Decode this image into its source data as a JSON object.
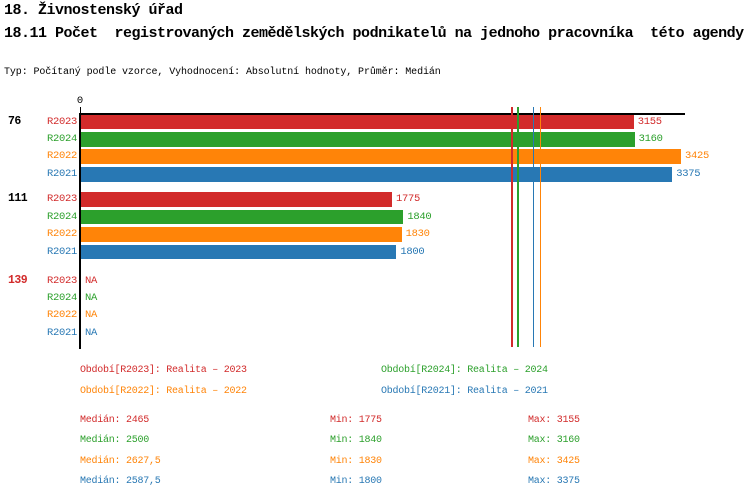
{
  "header": {
    "title": "18. Živnostenský úřad",
    "subtitle": "18.11 Počet  registrovaných zemědělských podnikatelů na jednoho pracovníka  této agendy",
    "meta": "Typ: Počítaný podle vzorce, Vyhodnocení: Absolutní hodnoty, Průměr: Medián"
  },
  "chart_data": {
    "type": "bar",
    "orientation": "horizontal",
    "title": "18.11 Počet registrovaných zemědělských podnikatelů na jednoho pracovníka této agendy",
    "x_axis": {
      "origin_label": "0",
      "min": 0,
      "max": 3445,
      "gridlines": false
    },
    "series_order": [
      "R2023",
      "R2024",
      "R2022",
      "R2021"
    ],
    "series_colors": {
      "R2023": "#d22b2b",
      "R2024": "#2ca02c",
      "R2022": "#ff8408",
      "R2021": "#2878b4"
    },
    "na_label": "NA",
    "groups": [
      {
        "label": "76",
        "label_color": "#000000",
        "bars": [
          {
            "series": "R2023",
            "value": 3155
          },
          {
            "series": "R2024",
            "value": 3160
          },
          {
            "series": "R2022",
            "value": 3425
          },
          {
            "series": "R2021",
            "value": 3375
          }
        ]
      },
      {
        "label": "111",
        "label_color": "#000000",
        "bars": [
          {
            "series": "R2023",
            "value": 1775
          },
          {
            "series": "R2024",
            "value": 1840
          },
          {
            "series": "R2022",
            "value": 1830
          },
          {
            "series": "R2021",
            "value": 1800
          }
        ]
      },
      {
        "label": "139",
        "label_color": "#d22b2b",
        "bars": [
          {
            "series": "R2023",
            "value": null
          },
          {
            "series": "R2024",
            "value": null
          },
          {
            "series": "R2022",
            "value": null
          },
          {
            "series": "R2021",
            "value": null
          }
        ]
      }
    ],
    "median_lines": [
      {
        "series": "R2023",
        "value": 2465
      },
      {
        "series": "R2024",
        "value": 2500
      },
      {
        "series": "R2021",
        "value": 2587.5
      },
      {
        "series": "R2022",
        "value": 2627.5
      }
    ]
  },
  "legend": {
    "items": [
      {
        "text": "Období[R2023]: Realita – 2023",
        "series": "R2023",
        "col": 0,
        "row": 0
      },
      {
        "text": "Období[R2024]: Realita – 2024",
        "series": "R2024",
        "col": 1,
        "row": 0
      },
      {
        "text": "Období[R2022]: Realita – 2022",
        "series": "R2022",
        "col": 0,
        "row": 1
      },
      {
        "text": "Období[R2021]: Realita – 2021",
        "series": "R2021",
        "col": 1,
        "row": 1
      }
    ]
  },
  "stats": {
    "median_label": "Medián",
    "min_label": "Min",
    "max_label": "Max",
    "rows": [
      {
        "series": "R2023",
        "median": "2465",
        "min": "1775",
        "max": "3155"
      },
      {
        "series": "R2024",
        "median": "2500",
        "min": "1840",
        "max": "3160"
      },
      {
        "series": "R2022",
        "median": "2627,5",
        "min": "1830",
        "max": "3425"
      },
      {
        "series": "R2021",
        "median": "2587,5",
        "min": "1800",
        "max": "3375"
      }
    ]
  }
}
